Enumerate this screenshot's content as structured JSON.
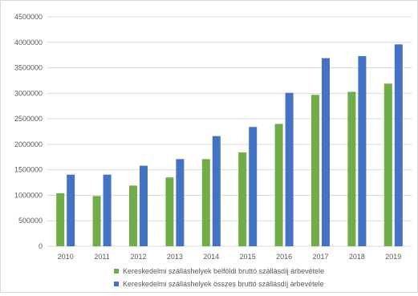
{
  "chart_data": {
    "type": "bar",
    "categories": [
      "2010",
      "2011",
      "2012",
      "2013",
      "2014",
      "2015",
      "2016",
      "2017",
      "2018",
      "2019"
    ],
    "series": [
      {
        "name": "Kereskedelmi szálláshelyek belföldi bruttó szállásdíj árbevétele",
        "color": "#70ad47",
        "values": [
          1040000,
          985000,
          1190000,
          1350000,
          1710000,
          1840000,
          2400000,
          2970000,
          3030000,
          3190000
        ]
      },
      {
        "name": "Kereskedelmi szálláshelyek összes bruttó szállásdíj árbevétele",
        "color": "#4472c4",
        "values": [
          1405000,
          1405000,
          1580000,
          1710000,
          2160000,
          2340000,
          3010000,
          3690000,
          3730000,
          3960000
        ]
      }
    ],
    "yticks": [
      "0",
      "500000",
      "1000000",
      "1500000",
      "2000000",
      "2500000",
      "3000000",
      "3500000",
      "4000000",
      "4500000"
    ],
    "ylim": [
      0,
      4500000
    ],
    "grid": true,
    "legend_position": "bottom"
  }
}
